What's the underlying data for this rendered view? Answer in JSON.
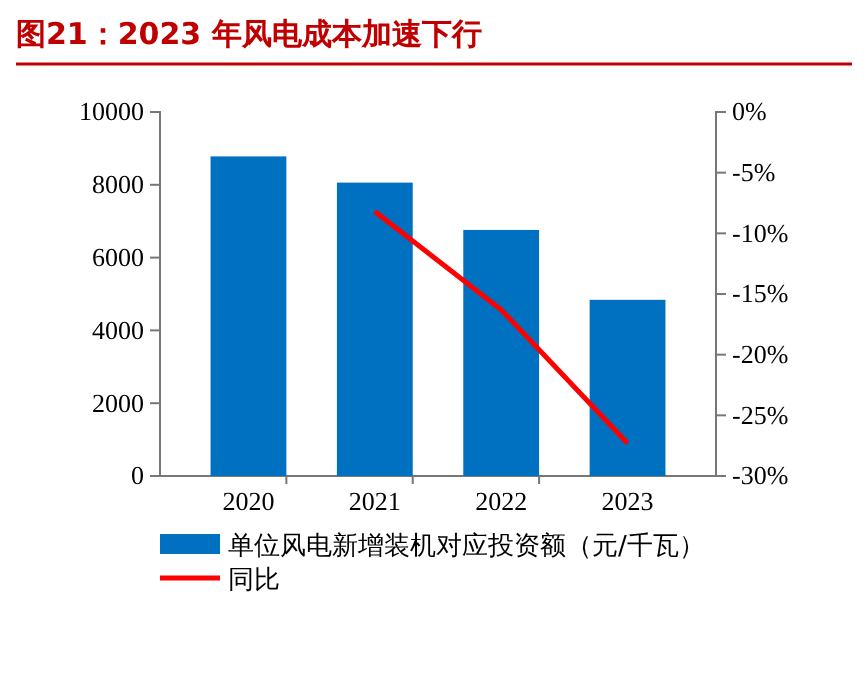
{
  "chart_data": {
    "type": "bar",
    "title": "图21：2023 年风电成本加速下行",
    "categories": [
      "2020",
      "2021",
      "2022",
      "2023"
    ],
    "series": [
      {
        "name": "单位风电新增装机对应投资额（元/千瓦）",
        "color": "#0070c0",
        "values": [
          8780,
          8060,
          6760,
          4840
        ]
      },
      {
        "name": "同比",
        "type": "line",
        "color": "#ff0000",
        "axis": "y2",
        "values": [
          null,
          -8.2,
          -16.3,
          -27.3
        ]
      }
    ],
    "ylim": [
      0,
      10000
    ],
    "yticks": [
      0,
      2000,
      4000,
      6000,
      8000,
      10000
    ],
    "y2lim": [
      -30,
      0
    ],
    "y2ticks": [
      {
        "value": 0,
        "label": "0%"
      },
      {
        "value": -5,
        "label": "-5%"
      },
      {
        "value": -10,
        "label": "-10%"
      },
      {
        "value": -15,
        "label": "-15%"
      },
      {
        "value": -20,
        "label": "-20%"
      },
      {
        "value": -25,
        "label": "-25%"
      },
      {
        "value": -30,
        "label": "-30%"
      }
    ],
    "legend": "bottom",
    "grid": false
  }
}
